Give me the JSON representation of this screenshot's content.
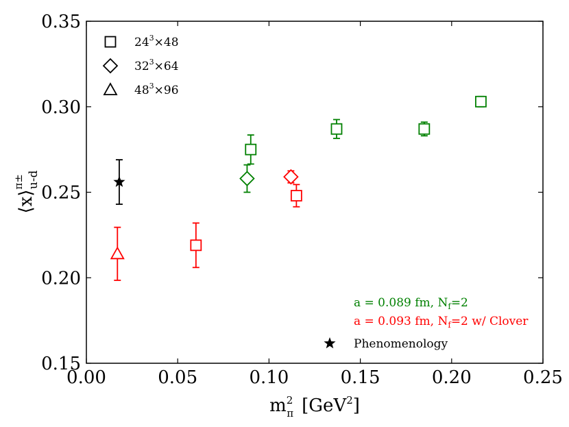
{
  "chart_data": {
    "type": "scatter",
    "title": "",
    "xlabel_main": "m",
    "xlabel_sup": "2",
    "xlabel_sub": "π",
    "xlabel_units_open": "[GeV",
    "xlabel_units_sup": "2",
    "xlabel_units_close": "]",
    "ylabel_main": "⟨x⟩",
    "ylabel_sup": "π±",
    "ylabel_sub": "u-d",
    "xlim": [
      0.0,
      0.25
    ],
    "ylim": [
      0.15,
      0.35
    ],
    "xticks": [
      0.0,
      0.05,
      0.1,
      0.15,
      0.2,
      0.25
    ],
    "xtick_labels": [
      "0.00",
      "0.05",
      "0.10",
      "0.15",
      "0.20",
      "0.25"
    ],
    "yticks": [
      0.15,
      0.2,
      0.25,
      0.3,
      0.35
    ],
    "ytick_labels": [
      "0.15",
      "0.20",
      "0.25",
      "0.30",
      "0.35"
    ],
    "colors": {
      "green": "#008000",
      "red": "#ff0000",
      "black": "#000000"
    },
    "points": [
      {
        "x": 0.018,
        "y": 0.256,
        "err": 0.013,
        "marker": "star",
        "color": "black"
      },
      {
        "x": 0.017,
        "y": 0.214,
        "err": 0.0155,
        "marker": "triangle",
        "color": "red"
      },
      {
        "x": 0.06,
        "y": 0.219,
        "err": 0.013,
        "marker": "square",
        "color": "red"
      },
      {
        "x": 0.088,
        "y": 0.258,
        "err": 0.008,
        "marker": "diamond",
        "color": "green"
      },
      {
        "x": 0.09,
        "y": 0.275,
        "err": 0.0085,
        "marker": "square",
        "color": "green"
      },
      {
        "x": 0.112,
        "y": 0.259,
        "err": 0.0035,
        "marker": "diamond",
        "color": "red"
      },
      {
        "x": 0.115,
        "y": 0.248,
        "err": 0.0065,
        "marker": "square",
        "color": "red"
      },
      {
        "x": 0.137,
        "y": 0.287,
        "err": 0.0055,
        "marker": "square",
        "color": "green"
      },
      {
        "x": 0.185,
        "y": 0.287,
        "err": 0.004,
        "marker": "square",
        "color": "green"
      },
      {
        "x": 0.216,
        "y": 0.303,
        "err": 0.003,
        "marker": "square",
        "color": "green"
      }
    ],
    "marker_legend": [
      {
        "marker": "square",
        "base": "24",
        "exp": "3",
        "rest": "×48"
      },
      {
        "marker": "diamond",
        "base": "32",
        "exp": "3",
        "rest": "×64"
      },
      {
        "marker": "triangle",
        "base": "48",
        "exp": "3",
        "rest": "×96"
      }
    ],
    "notes": {
      "green_main": "a = 0.089 fm, N",
      "green_sub": "f",
      "green_tail": "=2",
      "red_main": "a = 0.093 fm, N",
      "red_sub": "f",
      "red_tail": "=2 w/ Clover",
      "phenomenology": "Phenomenology"
    }
  }
}
